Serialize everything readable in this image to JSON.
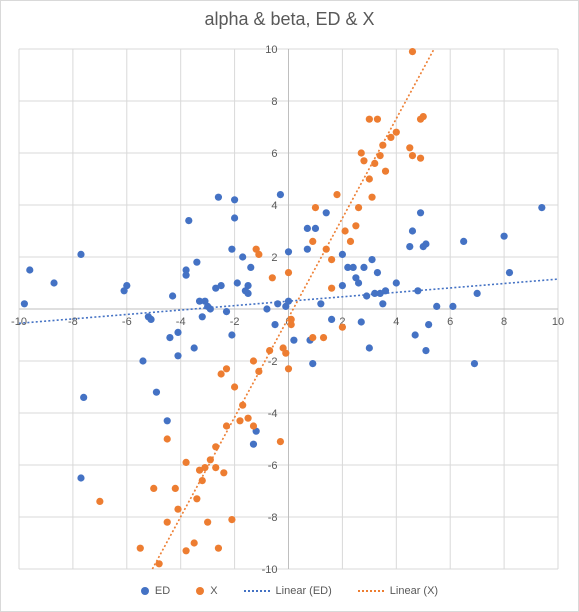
{
  "chart_data": {
    "type": "scatter",
    "title": "alpha & beta, ED & X",
    "xlim": [
      -10,
      10
    ],
    "ylim": [
      -10,
      10
    ],
    "x_ticks": [
      -10,
      -8,
      -6,
      -4,
      -2,
      0,
      2,
      4,
      6,
      8,
      10
    ],
    "y_ticks": [
      -10,
      -8,
      -6,
      -4,
      -2,
      0,
      2,
      4,
      6,
      8,
      10
    ],
    "grid": true,
    "legend_position": "bottom",
    "series": [
      {
        "name": "ED",
        "color": "#4472C4",
        "points": [
          [
            -9.8,
            0.2
          ],
          [
            -9.6,
            1.5
          ],
          [
            -8.7,
            1.0
          ],
          [
            -7.7,
            2.1
          ],
          [
            -7.6,
            -3.4
          ],
          [
            -7.7,
            -6.5
          ],
          [
            -6.1,
            0.7
          ],
          [
            -6.0,
            0.9
          ],
          [
            -5.4,
            -2.0
          ],
          [
            -5.2,
            -0.3
          ],
          [
            -5.1,
            -0.4
          ],
          [
            -4.9,
            -3.2
          ],
          [
            -4.5,
            -4.3
          ],
          [
            -4.4,
            -1.1
          ],
          [
            -4.3,
            0.5
          ],
          [
            -4.1,
            -0.9
          ],
          [
            -4.1,
            -1.8
          ],
          [
            -3.8,
            1.3
          ],
          [
            -3.8,
            1.5
          ],
          [
            -3.7,
            3.4
          ],
          [
            -3.5,
            -1.5
          ],
          [
            -3.4,
            1.8
          ],
          [
            -3.3,
            0.3
          ],
          [
            -3.2,
            -0.3
          ],
          [
            -3.1,
            0.3
          ],
          [
            -3.0,
            0.1
          ],
          [
            -2.9,
            0.0
          ],
          [
            -2.7,
            0.8
          ],
          [
            -2.6,
            4.3
          ],
          [
            -2.5,
            0.9
          ],
          [
            -2.3,
            -0.1
          ],
          [
            -2.1,
            2.3
          ],
          [
            -2.1,
            -1.0
          ],
          [
            -2.0,
            4.2
          ],
          [
            -2.0,
            3.5
          ],
          [
            -1.9,
            1.0
          ],
          [
            -1.7,
            2.0
          ],
          [
            -1.6,
            0.7
          ],
          [
            -1.5,
            0.9
          ],
          [
            -1.5,
            0.6
          ],
          [
            -1.4,
            1.6
          ],
          [
            -1.3,
            -5.2
          ],
          [
            -1.2,
            -4.7
          ],
          [
            -0.8,
            0.0
          ],
          [
            -0.5,
            -0.6
          ],
          [
            -0.4,
            0.2
          ],
          [
            -0.3,
            4.4
          ],
          [
            -0.1,
            0.1
          ],
          [
            0.0,
            2.2
          ],
          [
            0.0,
            0.3
          ],
          [
            0.2,
            -1.2
          ],
          [
            0.7,
            2.3
          ],
          [
            0.7,
            3.1
          ],
          [
            0.8,
            -1.2
          ],
          [
            0.9,
            -2.1
          ],
          [
            1.0,
            3.1
          ],
          [
            1.2,
            0.2
          ],
          [
            1.4,
            3.7
          ],
          [
            1.6,
            -0.4
          ],
          [
            2.0,
            2.1
          ],
          [
            2.0,
            0.9
          ],
          [
            2.2,
            1.6
          ],
          [
            2.4,
            1.6
          ],
          [
            2.5,
            1.2
          ],
          [
            2.6,
            1.0
          ],
          [
            2.7,
            -0.5
          ],
          [
            2.8,
            1.6
          ],
          [
            2.9,
            0.5
          ],
          [
            3.0,
            -1.5
          ],
          [
            3.1,
            1.9
          ],
          [
            3.2,
            0.6
          ],
          [
            3.3,
            1.4
          ],
          [
            3.4,
            0.6
          ],
          [
            3.5,
            0.2
          ],
          [
            3.6,
            0.7
          ],
          [
            4.0,
            1.0
          ],
          [
            4.5,
            2.4
          ],
          [
            4.6,
            3.0
          ],
          [
            4.7,
            -1.0
          ],
          [
            4.8,
            0.7
          ],
          [
            4.9,
            3.7
          ],
          [
            5.0,
            2.4
          ],
          [
            5.1,
            2.5
          ],
          [
            5.1,
            -1.6
          ],
          [
            5.2,
            -0.6
          ],
          [
            5.5,
            0.1
          ],
          [
            6.1,
            0.1
          ],
          [
            6.5,
            2.6
          ],
          [
            6.9,
            -2.1
          ],
          [
            7.0,
            0.6
          ],
          [
            8.0,
            2.8
          ],
          [
            8.2,
            1.4
          ],
          [
            9.4,
            3.9
          ]
        ]
      },
      {
        "name": "X",
        "color": "#ED7D31",
        "points": [
          [
            -7.0,
            -7.4
          ],
          [
            -5.5,
            -9.2
          ],
          [
            -5.0,
            -6.9
          ],
          [
            -4.8,
            -9.8
          ],
          [
            -4.5,
            -5.0
          ],
          [
            -4.5,
            -8.2
          ],
          [
            -4.2,
            -6.9
          ],
          [
            -4.1,
            -7.7
          ],
          [
            -3.8,
            -5.9
          ],
          [
            -3.8,
            -9.3
          ],
          [
            -3.5,
            -9.0
          ],
          [
            -3.4,
            -7.3
          ],
          [
            -3.3,
            -6.2
          ],
          [
            -3.2,
            -6.6
          ],
          [
            -3.1,
            -6.1
          ],
          [
            -3.0,
            -8.2
          ],
          [
            -2.9,
            -5.8
          ],
          [
            -2.7,
            -5.3
          ],
          [
            -2.7,
            -6.1
          ],
          [
            -2.6,
            -9.2
          ],
          [
            -2.5,
            -2.5
          ],
          [
            -2.4,
            -6.3
          ],
          [
            -2.3,
            -4.5
          ],
          [
            -2.3,
            -2.3
          ],
          [
            -2.1,
            -8.1
          ],
          [
            -2.0,
            -3.0
          ],
          [
            -1.8,
            -4.3
          ],
          [
            -1.7,
            -3.7
          ],
          [
            -1.5,
            -4.2
          ],
          [
            -1.3,
            -2.0
          ],
          [
            -1.3,
            -4.5
          ],
          [
            -1.2,
            2.3
          ],
          [
            -1.1,
            -2.4
          ],
          [
            -1.1,
            2.1
          ],
          [
            -0.7,
            -1.6
          ],
          [
            -0.6,
            1.2
          ],
          [
            -0.3,
            -5.1
          ],
          [
            -0.2,
            -1.5
          ],
          [
            -0.1,
            -1.7
          ],
          [
            0.0,
            -2.3
          ],
          [
            0.0,
            1.4
          ],
          [
            0.1,
            -0.6
          ],
          [
            0.1,
            -0.4
          ],
          [
            0.9,
            2.6
          ],
          [
            0.9,
            -1.1
          ],
          [
            1.0,
            3.9
          ],
          [
            1.3,
            -1.1
          ],
          [
            1.4,
            2.3
          ],
          [
            1.6,
            0.8
          ],
          [
            1.6,
            1.9
          ],
          [
            1.8,
            4.4
          ],
          [
            2.0,
            -0.7
          ],
          [
            2.1,
            3.0
          ],
          [
            2.3,
            2.6
          ],
          [
            2.5,
            3.2
          ],
          [
            2.6,
            3.9
          ],
          [
            2.7,
            6.0
          ],
          [
            2.8,
            5.7
          ],
          [
            3.0,
            5.0
          ],
          [
            3.0,
            7.3
          ],
          [
            3.1,
            4.3
          ],
          [
            3.2,
            5.6
          ],
          [
            3.3,
            7.3
          ],
          [
            3.4,
            5.9
          ],
          [
            3.5,
            6.3
          ],
          [
            3.6,
            5.3
          ],
          [
            3.8,
            6.6
          ],
          [
            4.0,
            6.8
          ],
          [
            4.5,
            6.2
          ],
          [
            4.6,
            5.9
          ],
          [
            4.6,
            9.9
          ],
          [
            4.9,
            5.8
          ],
          [
            4.9,
            7.3
          ],
          [
            5.0,
            7.4
          ]
        ]
      }
    ],
    "trendlines": [
      {
        "name": "Linear (ED)",
        "color": "#4472C4",
        "x": [
          -10,
          10
        ],
        "y": [
          -0.55,
          1.15
        ]
      },
      {
        "name": "Linear (X)",
        "color": "#ED7D31",
        "x": [
          -5.05,
          5.4
        ],
        "y": [
          -10,
          10
        ]
      }
    ]
  }
}
